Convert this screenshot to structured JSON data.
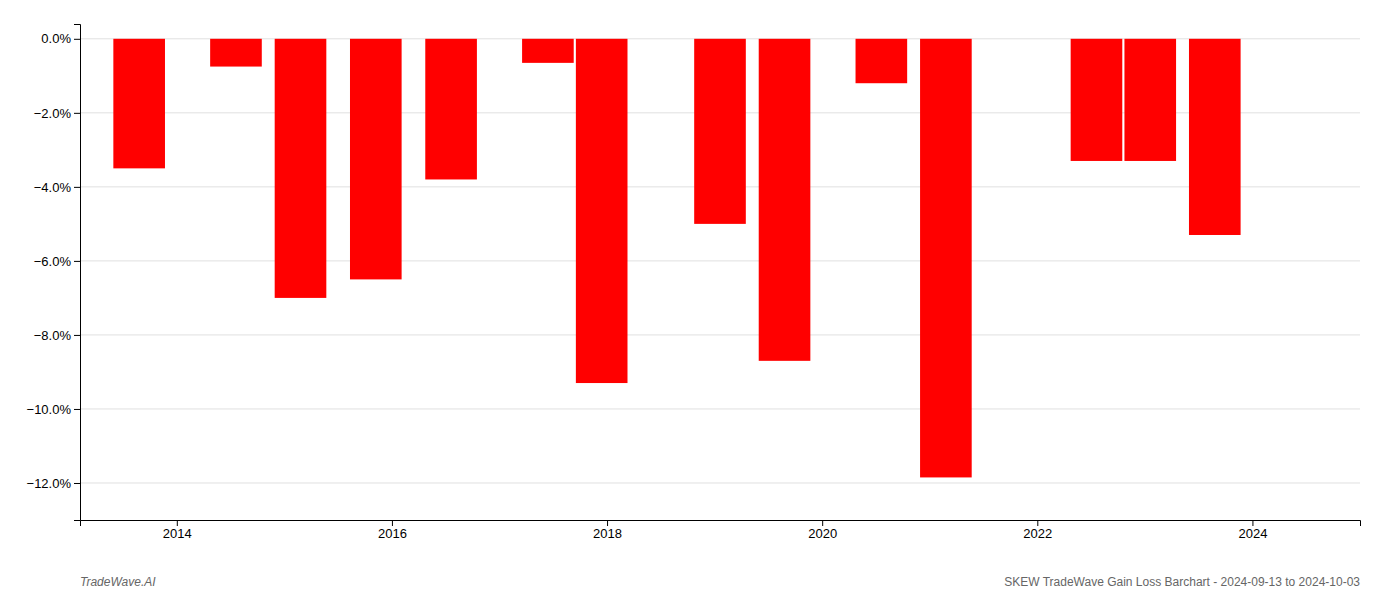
{
  "chart_data": {
    "type": "bar",
    "x": [
      2013.65,
      2014.55,
      2015.15,
      2015.85,
      2016.55,
      2017.45,
      2017.95,
      2019.05,
      2019.65,
      2020.55,
      2021.15,
      2022.55,
      2023.05,
      2023.65
    ],
    "values": [
      -3.5,
      -0.75,
      -7.0,
      -6.5,
      -3.8,
      -0.65,
      -9.3,
      -5.0,
      -8.7,
      -1.2,
      -11.85,
      -3.3,
      -3.3,
      -5.3
    ],
    "color": "#ff0000",
    "xlim": [
      2013.1,
      2025.0
    ],
    "ylim": [
      -13.0,
      0.4
    ],
    "xticks": [
      2014,
      2016,
      2018,
      2020,
      2022,
      2024
    ],
    "yticks": [
      {
        "value": 0.0,
        "label": "0.0%"
      },
      {
        "value": -2.0,
        "label": "−2.0%"
      },
      {
        "value": -4.0,
        "label": "−4.0%"
      },
      {
        "value": -6.0,
        "label": "−6.0%"
      },
      {
        "value": -8.0,
        "label": "−8.0%"
      },
      {
        "value": -10.0,
        "label": "−10.0%"
      },
      {
        "value": -12.0,
        "label": "−12.0%"
      }
    ],
    "grid": true,
    "annotations": [
      "TradeWave.AI",
      "SKEW TradeWave Gain Loss Barchart - 2024-09-13 to 2024-10-03"
    ]
  }
}
